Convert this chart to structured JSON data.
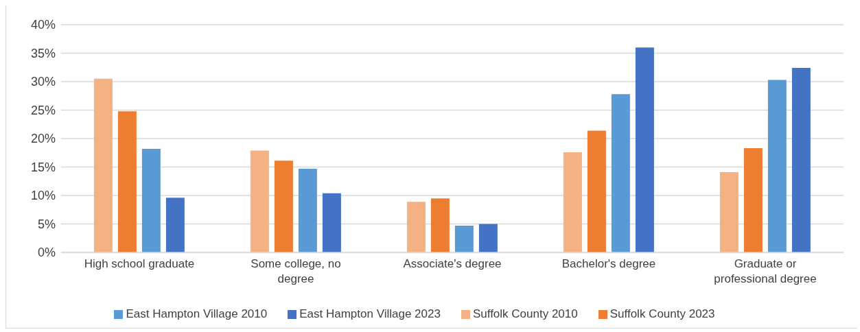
{
  "chart_data": {
    "type": "bar",
    "categories": [
      "High school graduate",
      "Some college, no degree",
      "Associate's degree",
      "Bachelor's degree",
      "Graduate or professional degree"
    ],
    "series": [
      {
        "name": "Suffolk County 2010",
        "color": "#f4b183",
        "values": [
          30.5,
          17.9,
          8.9,
          17.6,
          14.1
        ]
      },
      {
        "name": "Suffolk County 2023",
        "color": "#ed7d31",
        "values": [
          24.8,
          16.1,
          9.5,
          21.4,
          18.3
        ]
      },
      {
        "name": "East Hampton Village 2010",
        "color": "#5b9bd5",
        "values": [
          18.2,
          14.7,
          4.7,
          27.8,
          30.3
        ]
      },
      {
        "name": "East Hampton Village 2023",
        "color": "#4472c4",
        "values": [
          9.6,
          10.4,
          5.0,
          36.0,
          32.4
        ]
      }
    ],
    "ylim": [
      0,
      40
    ],
    "yticks": [
      {
        "value": 0,
        "label": "0%"
      },
      {
        "value": 5,
        "label": "5%"
      },
      {
        "value": 10,
        "label": "10%"
      },
      {
        "value": 15,
        "label": "15%"
      },
      {
        "value": 20,
        "label": "20%"
      },
      {
        "value": 25,
        "label": "25%"
      },
      {
        "value": 30,
        "label": "30%"
      },
      {
        "value": 35,
        "label": "35%"
      },
      {
        "value": 40,
        "label": "40%"
      }
    ],
    "grid": "y",
    "legend": "bottom"
  }
}
